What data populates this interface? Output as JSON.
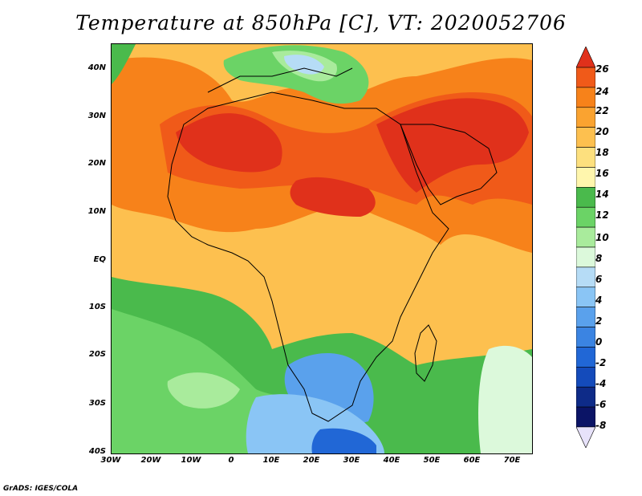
{
  "title": "Temperature at 850hPa [C], VT: 2020052706",
  "footer": "GrADS: IGES/COLA",
  "map": {
    "lat_labels": [
      "40N",
      "30N",
      "20N",
      "10N",
      "EQ",
      "10S",
      "20S",
      "30S",
      "40S"
    ],
    "lon_labels": [
      "30W",
      "20W",
      "10W",
      "0",
      "10E",
      "20E",
      "30E",
      "40E",
      "50E",
      "60E",
      "70E"
    ]
  },
  "colorbar": {
    "labels": [
      "26",
      "24",
      "22",
      "20",
      "18",
      "16",
      "14",
      "12",
      "10",
      "8",
      "6",
      "4",
      "2",
      "0",
      "-2",
      "-4",
      "-6",
      "-8"
    ],
    "colors": [
      "#e0311b",
      "#f05a19",
      "#f7821a",
      "#faa330",
      "#fdc04f",
      "#fde07e",
      "#fff6ad",
      "#4aba4c",
      "#6bd366",
      "#a9eb9c",
      "#dcf9db",
      "#b6dcf6",
      "#8ac5f5",
      "#5aa1ec",
      "#3b84e2",
      "#2167d6",
      "#144bbb",
      "#0e2b88",
      "#0b1466",
      "#e7e2fa"
    ]
  },
  "colors": {
    "ocean_warm": "#fdc04f",
    "sahara": "#e0311b"
  }
}
